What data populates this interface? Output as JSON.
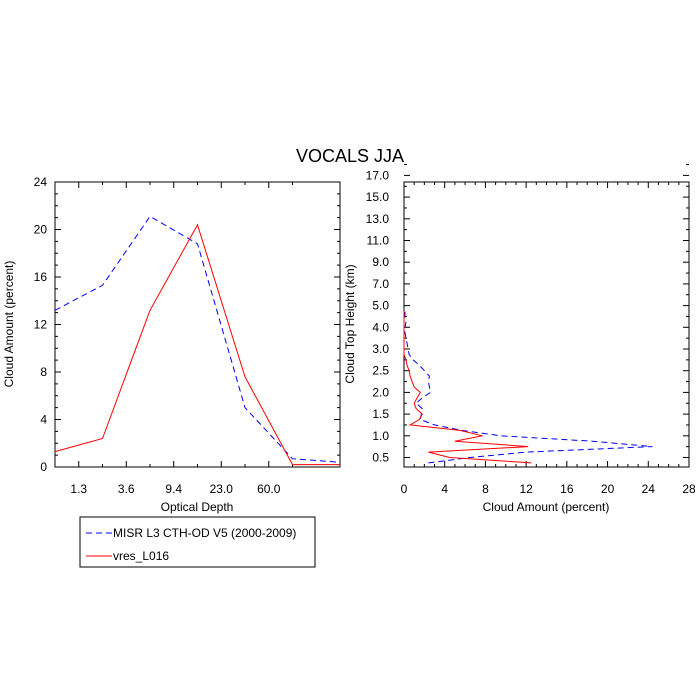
{
  "title": "VOCALS JJA",
  "colors": {
    "misr": "#0000ff",
    "model": "#ff0000",
    "axis": "#000000"
  },
  "legend": {
    "entries": [
      {
        "label": "MISR L3 CTH-OD V5 (2000-2009)",
        "color": "#0000ff",
        "dash": "dashed"
      },
      {
        "label": "vres_L016",
        "color": "#ff0000",
        "dash": "solid"
      }
    ]
  },
  "chart_data": [
    {
      "type": "line",
      "title": "VOCALS JJA",
      "xlabel": "Optical Depth",
      "ylabel": "Cloud Amount (percent)",
      "categories": [
        "1.3",
        "3.6",
        "9.4",
        "23.0",
        "60.0"
      ],
      "x": [
        0,
        1,
        2,
        3,
        4,
        5,
        6
      ],
      "xlim": [
        0,
        6
      ],
      "ylim": [
        0,
        24
      ],
      "yticks": [
        "0",
        "4",
        "8",
        "12",
        "16",
        "20",
        "24"
      ],
      "series": [
        {
          "name": "MISR L3 CTH-OD V5 (2000-2009)",
          "values": [
            13.2,
            15.3,
            21.1,
            18.8,
            5.0,
            0.7,
            0.4
          ]
        },
        {
          "name": "vres_L016",
          "values": [
            1.3,
            2.4,
            13.2,
            20.4,
            7.6,
            0.2,
            0.2
          ]
        }
      ]
    },
    {
      "type": "line",
      "xlabel": "Cloud Amount (percent)",
      "ylabel": "Cloud Top Height (km)",
      "xlim": [
        0,
        28
      ],
      "xticks": [
        "0",
        "4",
        "8",
        "12",
        "16",
        "20",
        "24",
        "28"
      ],
      "heights": [
        "0.5",
        "1.0",
        "1.5",
        "2.0",
        "2.5",
        "3.0",
        "4.0",
        "5.0",
        "7.0",
        "9.0",
        "11.0",
        "13.0",
        "15.0",
        "17.0"
      ],
      "level_positions": [
        -0.5,
        0,
        0.5,
        1,
        1.5,
        2,
        2.5,
        3,
        3.5,
        4,
        4.5,
        5,
        5.5,
        6,
        6.5,
        7,
        7.5,
        8,
        8.5,
        9,
        9.5,
        10,
        10.5,
        11,
        11.5,
        12,
        12.5,
        13,
        13.5
      ],
      "series": [
        {
          "name": "MISR L3 CTH-OD V5 (2000-2009)",
          "values": [
            2.4,
            6.5,
            12.0,
            24.4,
            18.5,
            9.5,
            5.7,
            3.0,
            1.6,
            1.7,
            1.8,
            1.2,
            1.8,
            2.6,
            2.5,
            2.4,
            2.5,
            2.0,
            1.5,
            0.9,
            0.5,
            0.4,
            0.3,
            0.2,
            0.1,
            0.1,
            0.2,
            0.1,
            0.1
          ]
        },
        {
          "name": "vres_L016",
          "values": [
            12.5,
            4.5,
            2.4,
            12.2,
            5.0,
            7.7,
            5.5,
            0.6,
            1.5,
            1.8,
            1.2,
            1.0,
            1.3,
            1.6,
            1.0,
            0.8,
            0.6,
            0.5,
            0.3,
            0.2,
            0.0,
            0.0,
            0.0,
            0.0,
            0.0,
            0.0,
            0.0,
            0.0,
            0.0
          ]
        }
      ]
    }
  ]
}
